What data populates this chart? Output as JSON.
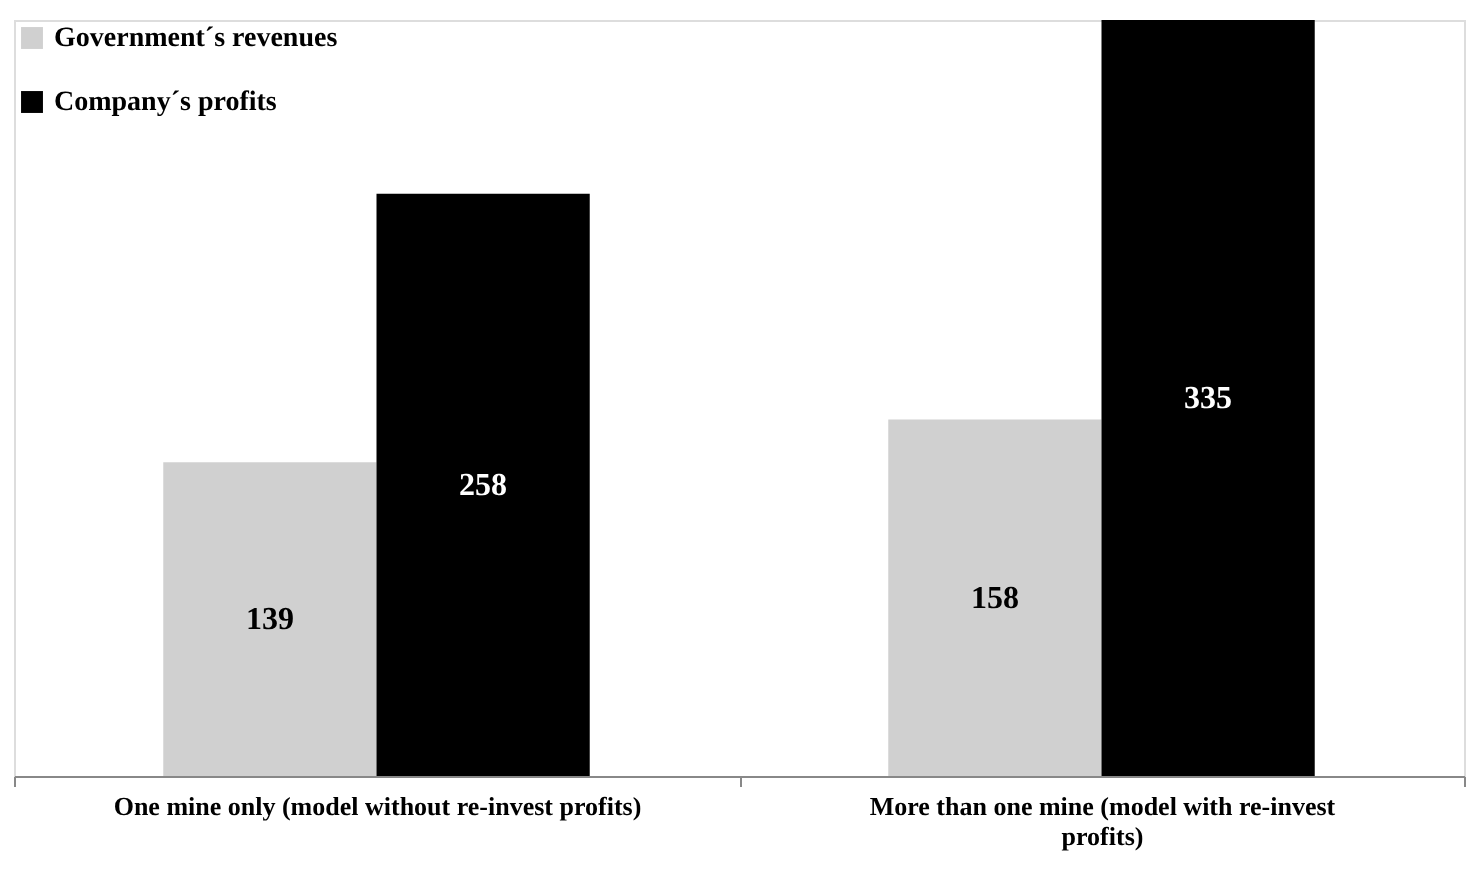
{
  "chart_data": {
    "type": "bar",
    "categories": [
      "One mine only (model without re-invest profits)",
      "More than one mine (model with re-invest profits)"
    ],
    "series": [
      {
        "name": "Government´s revenues",
        "color": "#d0d0d0",
        "values": [
          139,
          158
        ]
      },
      {
        "name": "Company´s profits",
        "color": "#000000",
        "values": [
          258,
          335
        ]
      }
    ],
    "data_labels": true,
    "legend": "top left",
    "grid": false
  }
}
